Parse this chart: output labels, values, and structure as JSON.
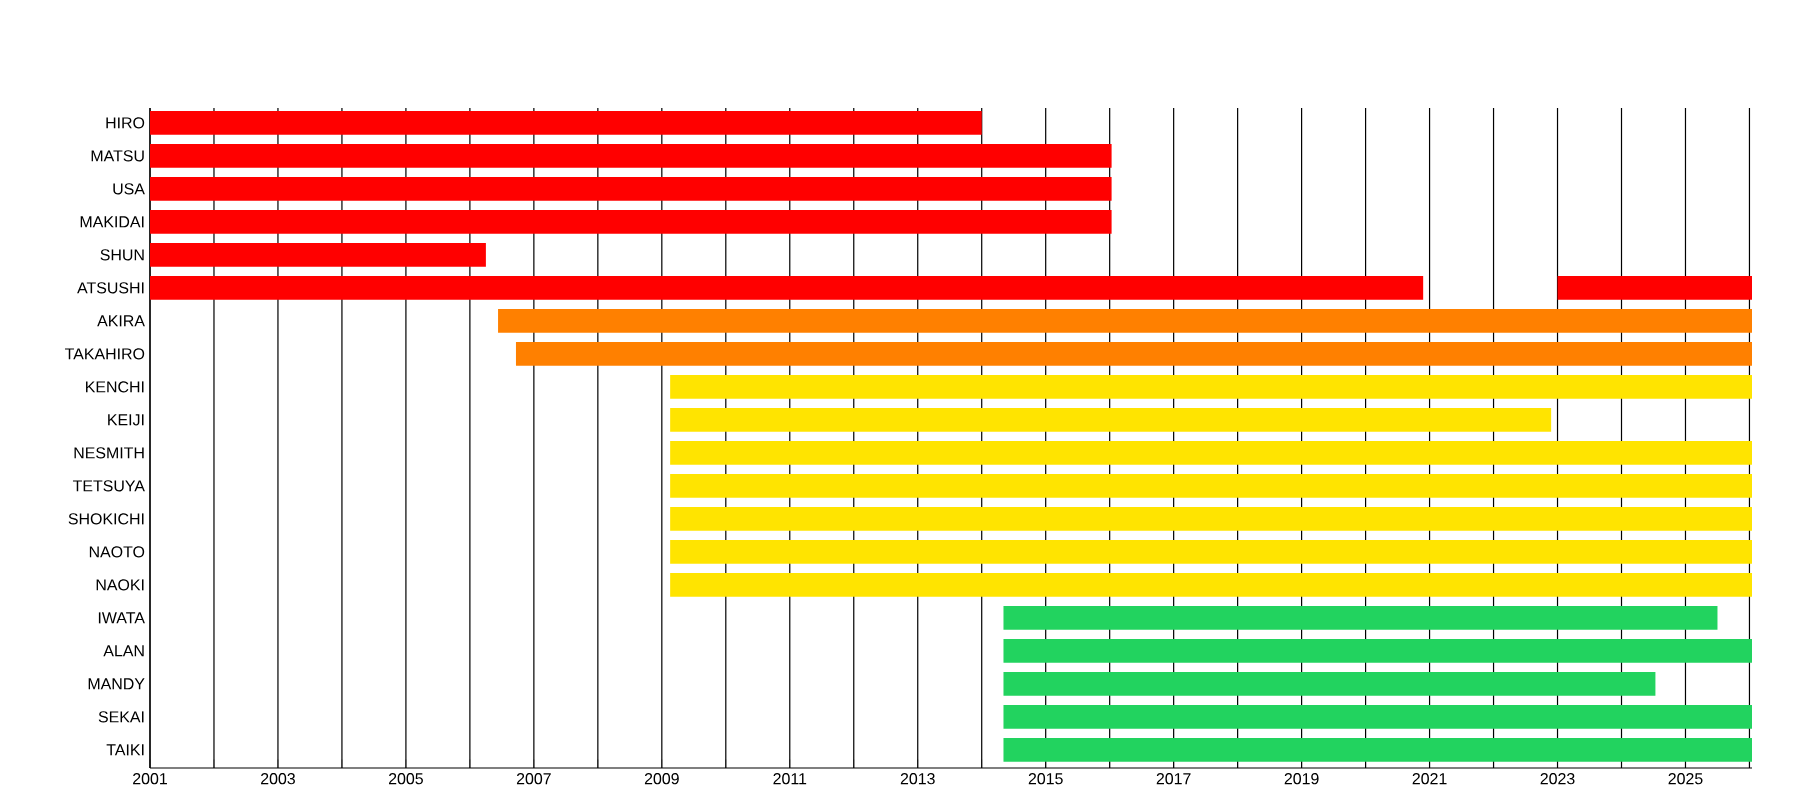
{
  "chart_data": {
    "type": "bar",
    "orientation": "horizontal",
    "categories": [
      "HIRO",
      "MATSU",
      "USA",
      "MAKIDAI",
      "SHUN",
      "ATSUSHI",
      "AKIRA",
      "TAKAHIRO",
      "KENCHI",
      "KEIJI",
      "NESMITH",
      "TETSUYA",
      "SHOKICHI",
      "NAOTO",
      "NAOKI",
      "IWATA",
      "ALAN",
      "MANDY",
      "SEKAI",
      "TAIKI"
    ],
    "series": [
      {
        "base": [
          2001,
          2001,
          2001,
          2001,
          2001,
          2001,
          2006.44,
          2006.72,
          2009.13,
          2009.13,
          2009.13,
          2009.13,
          2009.13,
          2009.13,
          2009.13,
          2014.34,
          2014.34,
          2014.34,
          2014.34,
          2014.34
        ],
        "values": [
          13.0,
          15.03,
          15.03,
          15.03,
          5.25,
          19.9,
          19.6,
          19.32,
          16.91,
          13.77,
          16.91,
          16.91,
          16.91,
          16.91,
          16.91,
          11.16,
          11.7,
          10.19,
          11.7,
          11.7
        ],
        "colors": [
          "#ff0000",
          "#ff0000",
          "#ff0000",
          "#ff0000",
          "#ff0000",
          "#ff0000",
          "#ff8000",
          "#ff8000",
          "#ffe400",
          "#ffe400",
          "#ffe400",
          "#ffe400",
          "#ffe400",
          "#ffe400",
          "#ffe400",
          "#22d35f",
          "#22d35f",
          "#22d35f",
          "#22d35f",
          "#22d35f"
        ]
      },
      {
        "base": [
          null,
          null,
          null,
          null,
          null,
          2023.0,
          null,
          null,
          null,
          null,
          null,
          null,
          null,
          null,
          null,
          null,
          null,
          null,
          null,
          null
        ],
        "values": [
          null,
          null,
          null,
          null,
          null,
          3.04,
          null,
          null,
          null,
          null,
          null,
          null,
          null,
          null,
          null,
          null,
          null,
          null,
          null,
          null
        ],
        "colors": [
          null,
          null,
          null,
          null,
          null,
          "#ff0000",
          null,
          null,
          null,
          null,
          null,
          null,
          null,
          null,
          null,
          null,
          null,
          null,
          null,
          null
        ]
      }
    ],
    "xlim": [
      2001,
      2026.04
    ],
    "xticks": [
      2001,
      {
        "value": 2002,
        "label": null
      },
      2003,
      {
        "value": 2004,
        "label": null
      },
      2005,
      {
        "value": 2006,
        "label": null
      },
      2007,
      {
        "value": 2008,
        "label": null
      },
      2009,
      {
        "value": 2010,
        "label": null
      },
      2011,
      {
        "value": 2012,
        "label": null
      },
      2013,
      {
        "value": 2014,
        "label": null
      },
      2015,
      {
        "value": 2016,
        "label": null
      },
      2017,
      {
        "value": 2018,
        "label": null
      },
      2019,
      {
        "value": 2020,
        "label": null
      },
      2021,
      {
        "value": 2022,
        "label": null
      },
      2023,
      {
        "value": 2024,
        "label": null
      },
      2025,
      {
        "value": 2026,
        "label": null
      }
    ],
    "grid": "x"
  }
}
